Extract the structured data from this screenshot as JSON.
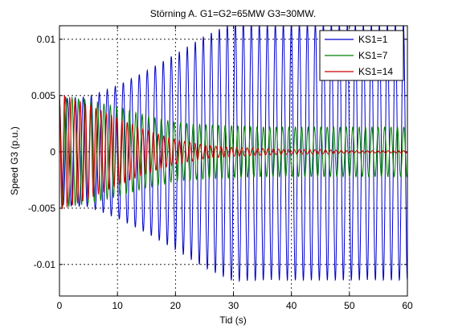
{
  "chart_data": {
    "type": "line",
    "title": "Störning A. G1=G2=65MW G3=30MW.",
    "xlabel": "Tid (s)",
    "ylabel": "Speed G3 (p.u.)",
    "xlim": [
      0,
      60
    ],
    "ylim": [
      -0.0128,
      0.0112
    ],
    "x_ticks": [
      0,
      10,
      20,
      30,
      40,
      50,
      60
    ],
    "x_tick_labels": [
      "0",
      "10",
      "20",
      "30",
      "40",
      "50",
      "60"
    ],
    "y_ticks": [
      -0.01,
      -0.005,
      0,
      0.005,
      0.01
    ],
    "y_tick_labels": [
      "-0.01",
      "-0.005",
      "0",
      "0.005",
      "0.01"
    ],
    "grid": true,
    "legend_position": "top-right",
    "series": [
      {
        "name": "KS1=1",
        "color": "#0000cc",
        "description": "growing oscillation, period ~1.4 s",
        "x": [
          0,
          5,
          10,
          15,
          20,
          25,
          30,
          35,
          40,
          45,
          50,
          55,
          60
        ],
        "amplitude": [
          0.0047,
          0.0049,
          0.0059,
          0.0072,
          0.0087,
          0.0103,
          0.0115,
          0.0114,
          0.0114,
          0.0114,
          0.0114,
          0.0114,
          0.0114
        ],
        "period": 1.38
      },
      {
        "name": "KS1=7",
        "color": "#008000",
        "description": "sustained oscillation, period ~1.1 s",
        "x": [
          0,
          5,
          10,
          15,
          20,
          25,
          30,
          35,
          40,
          45,
          50,
          55,
          60
        ],
        "amplitude": [
          0.005,
          0.0046,
          0.004,
          0.0032,
          0.0026,
          0.0024,
          0.0023,
          0.0022,
          0.0022,
          0.0022,
          0.0022,
          0.0022,
          0.0022
        ],
        "period": 1.1
      },
      {
        "name": "KS1=14",
        "color": "#cc0000",
        "description": "damped oscillation, period ~0.9 s",
        "x": [
          0,
          5,
          10,
          15,
          20,
          25,
          30,
          35,
          40,
          45,
          50,
          55,
          60
        ],
        "amplitude": [
          0.0052,
          0.0042,
          0.003,
          0.0019,
          0.0011,
          0.0006,
          0.0004,
          0.0003,
          0.0002,
          0.0002,
          0.0001,
          0.0001,
          0.0001
        ],
        "period": 0.9
      }
    ]
  }
}
